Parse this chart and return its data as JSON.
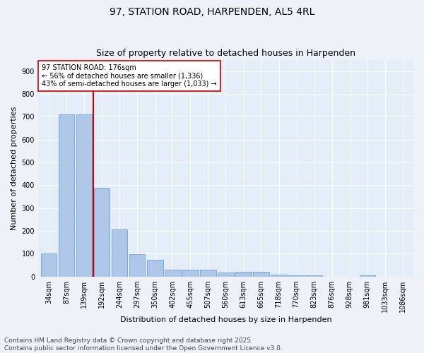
{
  "title_line1": "97, STATION ROAD, HARPENDEN, AL5 4RL",
  "title_line2": "Size of property relative to detached houses in Harpenden",
  "xlabel": "Distribution of detached houses by size in Harpenden",
  "ylabel": "Number of detached properties",
  "categories": [
    "34sqm",
    "87sqm",
    "139sqm",
    "192sqm",
    "244sqm",
    "297sqm",
    "350sqm",
    "402sqm",
    "455sqm",
    "507sqm",
    "560sqm",
    "613sqm",
    "665sqm",
    "718sqm",
    "770sqm",
    "823sqm",
    "876sqm",
    "928sqm",
    "981sqm",
    "1033sqm",
    "1086sqm"
  ],
  "values": [
    101,
    710,
    710,
    390,
    207,
    97,
    73,
    30,
    30,
    30,
    18,
    20,
    20,
    8,
    6,
    6,
    0,
    0,
    6,
    0,
    0
  ],
  "bar_color": "#aec6e8",
  "bar_edge_color": "#5a9bd4",
  "vline_x": 2.5,
  "vline_color": "#cc0000",
  "annotation_text": "97 STATION ROAD: 176sqm\n← 56% of detached houses are smaller (1,336)\n43% of semi-detached houses are larger (1,033) →",
  "annotation_box_color": "#ffffff",
  "annotation_box_edge_color": "#cc0000",
  "ylim": [
    0,
    950
  ],
  "yticks": [
    0,
    100,
    200,
    300,
    400,
    500,
    600,
    700,
    800,
    900
  ],
  "footer_line1": "Contains HM Land Registry data © Crown copyright and database right 2025.",
  "footer_line2": "Contains public sector information licensed under the Open Government Licence v3.0.",
  "background_color": "#eef2f8",
  "plot_bg_color": "#e4ecf7",
  "grid_color": "#ffffff",
  "title_fontsize": 10,
  "subtitle_fontsize": 9,
  "axis_label_fontsize": 8,
  "tick_fontsize": 7,
  "annot_fontsize": 7,
  "footer_fontsize": 6.5
}
